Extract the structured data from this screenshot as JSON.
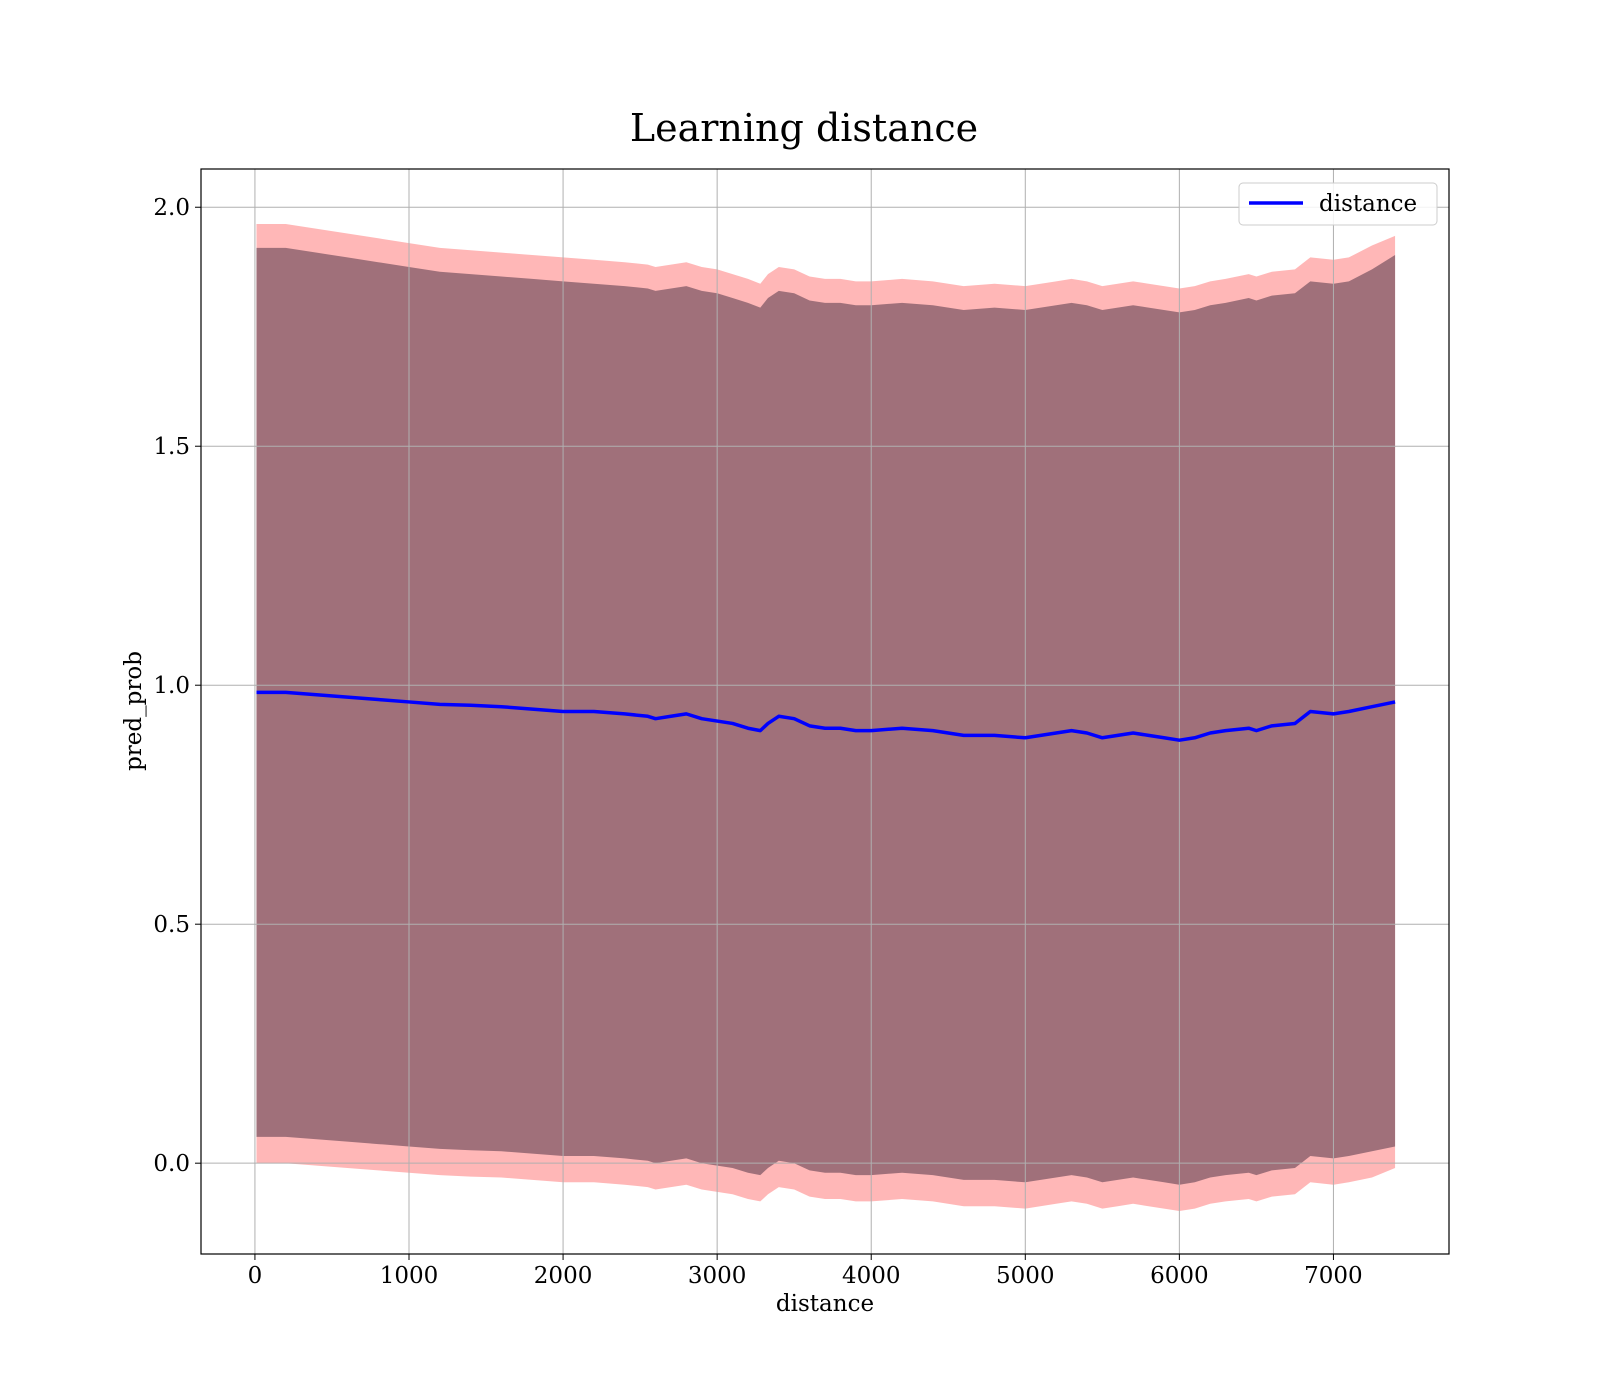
{
  "chart_data": {
    "type": "line",
    "title": "Learning distance",
    "xlabel": "distance",
    "ylabel": "pred_prob",
    "xlim": [
      -350,
      7750
    ],
    "ylim": [
      -0.19,
      2.08
    ],
    "xticks": [
      0,
      1000,
      2000,
      3000,
      4000,
      5000,
      6000,
      7000
    ],
    "yticks": [
      0.0,
      0.5,
      1.0,
      1.5,
      2.0
    ],
    "xtick_labels": [
      "0",
      "1000",
      "2000",
      "3000",
      "4000",
      "5000",
      "6000",
      "7000"
    ],
    "ytick_labels": [
      "0.0",
      "0.5",
      "1.0",
      "1.5",
      "2.0"
    ],
    "grid": true,
    "legend": {
      "position": "top-right",
      "entries": [
        "distance"
      ]
    },
    "colors": {
      "line": "#0000ff",
      "outer_band": "#ff9999",
      "inner_band": "#a0707a",
      "grid": "#b0b0b0"
    },
    "series": [
      {
        "name": "distance",
        "x": [
          10,
          200,
          400,
          600,
          800,
          1000,
          1200,
          1400,
          1600,
          1800,
          2000,
          2200,
          2400,
          2550,
          2600,
          2700,
          2800,
          2900,
          3000,
          3100,
          3200,
          3280,
          3330,
          3400,
          3500,
          3600,
          3700,
          3800,
          3900,
          4000,
          4200,
          4400,
          4600,
          4800,
          5000,
          5200,
          5300,
          5400,
          5500,
          5600,
          5700,
          5800,
          5900,
          6000,
          6100,
          6200,
          6300,
          6450,
          6500,
          6600,
          6750,
          6850,
          7000,
          7100,
          7250,
          7400
        ],
        "y": [
          0.985,
          0.985,
          0.98,
          0.975,
          0.97,
          0.965,
          0.96,
          0.958,
          0.955,
          0.95,
          0.945,
          0.945,
          0.94,
          0.935,
          0.93,
          0.935,
          0.94,
          0.93,
          0.925,
          0.92,
          0.91,
          0.905,
          0.92,
          0.935,
          0.93,
          0.915,
          0.91,
          0.91,
          0.905,
          0.905,
          0.91,
          0.905,
          0.895,
          0.895,
          0.89,
          0.9,
          0.905,
          0.9,
          0.89,
          0.895,
          0.9,
          0.895,
          0.89,
          0.885,
          0.89,
          0.9,
          0.905,
          0.91,
          0.905,
          0.915,
          0.92,
          0.945,
          0.94,
          0.945,
          0.955,
          0.965
        ],
        "band_outer_upper": [
          1.965,
          1.965,
          1.955,
          1.945,
          1.935,
          1.925,
          1.915,
          1.91,
          1.905,
          1.9,
          1.895,
          1.89,
          1.885,
          1.88,
          1.875,
          1.88,
          1.885,
          1.875,
          1.87,
          1.86,
          1.85,
          1.84,
          1.86,
          1.875,
          1.87,
          1.855,
          1.85,
          1.85,
          1.845,
          1.845,
          1.85,
          1.845,
          1.835,
          1.84,
          1.835,
          1.845,
          1.85,
          1.845,
          1.835,
          1.84,
          1.845,
          1.84,
          1.835,
          1.83,
          1.835,
          1.845,
          1.85,
          1.86,
          1.855,
          1.865,
          1.87,
          1.895,
          1.89,
          1.895,
          1.92,
          1.94
        ],
        "band_outer_lower": [
          0.0,
          0.0,
          -0.005,
          -0.01,
          -0.015,
          -0.02,
          -0.025,
          -0.028,
          -0.03,
          -0.035,
          -0.04,
          -0.04,
          -0.045,
          -0.05,
          -0.055,
          -0.05,
          -0.045,
          -0.055,
          -0.06,
          -0.065,
          -0.075,
          -0.08,
          -0.065,
          -0.05,
          -0.055,
          -0.07,
          -0.075,
          -0.075,
          -0.08,
          -0.08,
          -0.075,
          -0.08,
          -0.09,
          -0.09,
          -0.095,
          -0.085,
          -0.08,
          -0.085,
          -0.095,
          -0.09,
          -0.085,
          -0.09,
          -0.095,
          -0.1,
          -0.095,
          -0.085,
          -0.08,
          -0.075,
          -0.08,
          -0.07,
          -0.065,
          -0.04,
          -0.045,
          -0.04,
          -0.03,
          -0.01
        ],
        "band_inner_upper": [
          1.915,
          1.915,
          1.905,
          1.895,
          1.885,
          1.875,
          1.865,
          1.86,
          1.855,
          1.85,
          1.845,
          1.84,
          1.835,
          1.83,
          1.825,
          1.83,
          1.835,
          1.825,
          1.82,
          1.81,
          1.8,
          1.79,
          1.81,
          1.825,
          1.82,
          1.805,
          1.8,
          1.8,
          1.795,
          1.795,
          1.8,
          1.795,
          1.785,
          1.79,
          1.785,
          1.795,
          1.8,
          1.795,
          1.785,
          1.79,
          1.795,
          1.79,
          1.785,
          1.78,
          1.785,
          1.795,
          1.8,
          1.81,
          1.805,
          1.815,
          1.82,
          1.845,
          1.84,
          1.845,
          1.87,
          1.9
        ],
        "band_inner_lower": [
          0.055,
          0.055,
          0.05,
          0.045,
          0.04,
          0.035,
          0.03,
          0.027,
          0.025,
          0.02,
          0.015,
          0.015,
          0.01,
          0.005,
          0.0,
          0.005,
          0.01,
          0.0,
          -0.005,
          -0.01,
          -0.02,
          -0.025,
          -0.01,
          0.005,
          0.0,
          -0.015,
          -0.02,
          -0.02,
          -0.025,
          -0.025,
          -0.02,
          -0.025,
          -0.035,
          -0.035,
          -0.04,
          -0.03,
          -0.025,
          -0.03,
          -0.04,
          -0.035,
          -0.03,
          -0.035,
          -0.04,
          -0.045,
          -0.04,
          -0.03,
          -0.025,
          -0.02,
          -0.025,
          -0.015,
          -0.01,
          0.015,
          0.01,
          0.015,
          0.025,
          0.035
        ]
      }
    ]
  }
}
